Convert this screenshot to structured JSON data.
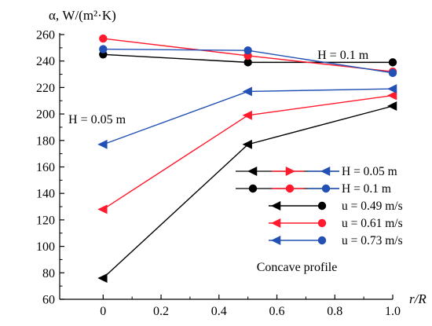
{
  "chart_data": {
    "type": "line",
    "ylabel": "α, W/(m²·K)",
    "xlabel": "r/R",
    "xlim": [
      -0.15,
      1.0
    ],
    "ylim": [
      60,
      260
    ],
    "x_ticks": [
      0,
      0.2,
      0.4,
      0.6,
      0.8,
      1.0
    ],
    "x_tick_labels": [
      "0",
      "0.2",
      "0.4",
      "0.6",
      "0.8",
      "1.0"
    ],
    "y_ticks": [
      60,
      80,
      100,
      120,
      140,
      160,
      180,
      200,
      220,
      240,
      260
    ],
    "y_tick_labels": [
      "60",
      "80",
      "100",
      "120",
      "140",
      "160",
      "180",
      "200",
      "220",
      "240",
      "260"
    ],
    "grid": false,
    "annotations": [
      {
        "text": "H = 0.1 m",
        "x": 0.74,
        "y": 241.5
      },
      {
        "text": "H = 0.05 m",
        "x": -0.12,
        "y": 193
      },
      {
        "text": "Concave profile",
        "x": 0.53,
        "y": 81.5
      }
    ],
    "colors": {
      "black": "#000000",
      "red": "#ff1a2e",
      "blue": "#2250b4"
    },
    "series": [
      {
        "H": "0.05 m",
        "u": "0.49 m/s",
        "marker": "triangle",
        "color": "#000000",
        "x": [
          0,
          0.5,
          1.0
        ],
        "y": [
          76,
          177,
          206
        ]
      },
      {
        "H": "0.05 m",
        "u": "0.61 m/s",
        "marker": "triangle",
        "color": "#ff1a2e",
        "x": [
          0,
          0.5,
          1.0
        ],
        "y": [
          128,
          199,
          214
        ]
      },
      {
        "H": "0.05 m",
        "u": "0.73 m/s",
        "marker": "triangle",
        "color": "#2250b4",
        "x": [
          0,
          0.5,
          1.0
        ],
        "y": [
          177,
          217,
          219
        ]
      },
      {
        "H": "0.1 m",
        "u": "0.49 m/s",
        "marker": "circle",
        "color": "#000000",
        "x": [
          0,
          0.5,
          1.0
        ],
        "y": [
          245,
          239,
          239
        ]
      },
      {
        "H": "0.1 m",
        "u": "0.61 m/s",
        "marker": "circle",
        "color": "#ff1a2e",
        "x": [
          0,
          0.5,
          1.0
        ],
        "y": [
          257,
          244,
          232
        ]
      },
      {
        "H": "0.1 m",
        "u": "0.73 m/s",
        "marker": "circle",
        "color": "#2250b4",
        "x": [
          0,
          0.5,
          1.0
        ],
        "y": [
          249,
          248,
          231
        ]
      }
    ],
    "legend": {
      "placement": "bottom-right",
      "entries": [
        {
          "label": "H = 0.05 m",
          "markers": [
            {
              "shape": "triangle-left",
              "color": "#000000"
            },
            {
              "shape": "triangle-right",
              "color": "#ff1a2e"
            },
            {
              "shape": "triangle-left",
              "color": "#2250b4"
            }
          ]
        },
        {
          "label": "H = 0.1 m",
          "markers": [
            {
              "shape": "circle",
              "color": "#000000"
            },
            {
              "shape": "circle",
              "color": "#ff1a2e"
            },
            {
              "shape": "circle",
              "color": "#2250b4"
            }
          ]
        },
        {
          "label": "u = 0.49 m/s",
          "markers": [
            {
              "shape": "triangle-left",
              "color": "#000000"
            },
            {
              "shape": "circle",
              "color": "#000000"
            }
          ]
        },
        {
          "label": "u = 0.61 m/s",
          "markers": [
            {
              "shape": "triangle-left",
              "color": "#ff1a2e"
            },
            {
              "shape": "circle",
              "color": "#ff1a2e"
            }
          ]
        },
        {
          "label": "u = 0.73 m/s",
          "markers": [
            {
              "shape": "triangle-left",
              "color": "#2250b4"
            },
            {
              "shape": "circle",
              "color": "#2250b4"
            }
          ]
        }
      ]
    }
  }
}
